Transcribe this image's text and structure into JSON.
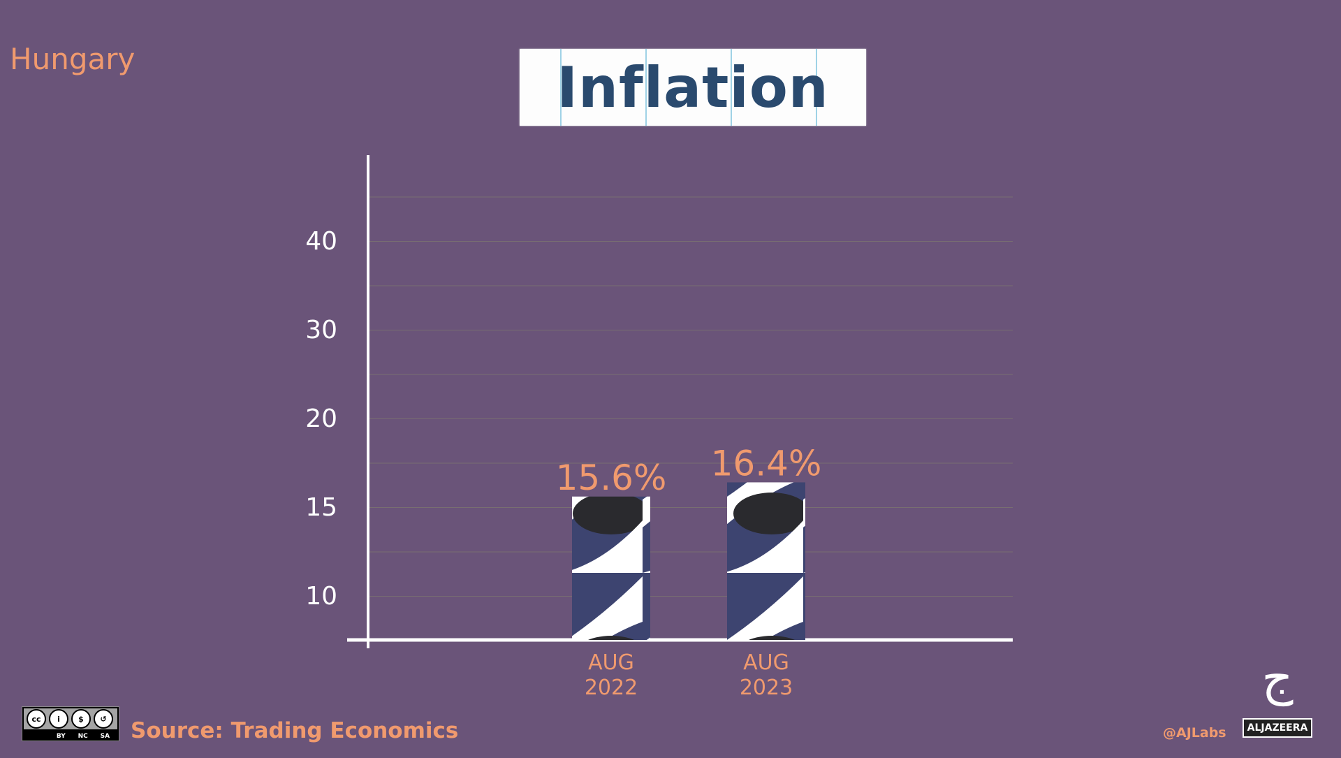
{
  "header": {
    "country": "Hungary",
    "title": "Inflation"
  },
  "chart_data": {
    "type": "bar",
    "title": "Inflation",
    "subtitle": "Hungary",
    "categories": [
      [
        "AUG",
        "2022"
      ],
      [
        "AUG",
        "2023"
      ]
    ],
    "values": [
      15.6,
      16.4
    ],
    "value_labels": [
      "15.6%",
      "16.4%"
    ],
    "y_ticks": [
      10,
      15,
      20,
      30,
      40
    ],
    "y_tick_labels": [
      "10",
      "15",
      "20",
      "30",
      "40"
    ],
    "ylabel": "",
    "xlabel": "",
    "grid": true,
    "colors": {
      "label": "#f09a6e",
      "axis": "#ffffff",
      "bar_dark": "#3d4470",
      "bar_light": "#ffffff",
      "bar_blot": "#2a2a2e"
    }
  },
  "footer": {
    "source": "Source: Trading Economics",
    "license": [
      "BY",
      "NC",
      "SA"
    ],
    "license_icon": "cc",
    "handle": "@AJLabs",
    "brand": "ALJAZEERA"
  }
}
